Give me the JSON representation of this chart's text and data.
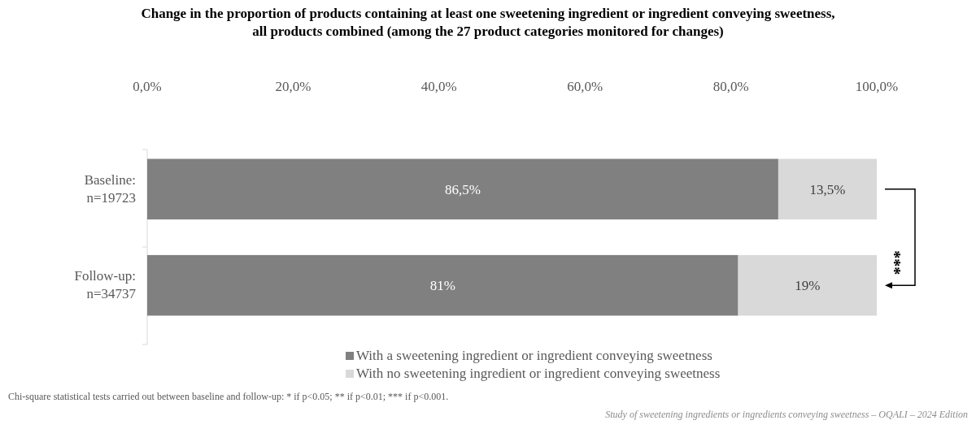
{
  "chart_data": {
    "type": "bar",
    "orientation": "horizontal",
    "stacked": true,
    "title": "Change in the proportion of products containing at least one sweetening ingredient or ingredient conveying sweetness, all products combined (among the 27 product categories monitored for changes)",
    "categories": [
      "Baseline: n=19723",
      "Follow-up: n=34737"
    ],
    "series": [
      {
        "name": "With a sweetening ingredient or ingredient conveying sweetness",
        "color": "#808080",
        "values": [
          86.5,
          81
        ],
        "value_labels": [
          "86,5%",
          "81%"
        ]
      },
      {
        "name": "With no sweetening ingredient or ingredient conveying sweetness",
        "color": "#d9d9d9",
        "values": [
          13.5,
          19
        ],
        "value_labels": [
          "13,5%",
          "19%"
        ]
      }
    ],
    "xlim": [
      0,
      100
    ],
    "xticks": [
      {
        "value": 0,
        "label": "0,0%"
      },
      {
        "value": 20,
        "label": "20,0%"
      },
      {
        "value": 40,
        "label": "40,0%"
      },
      {
        "value": 60,
        "label": "60,0%"
      },
      {
        "value": 80,
        "label": "80,0%"
      },
      {
        "value": 100,
        "label": "100,0%"
      }
    ],
    "legend": "bottom",
    "annotations": [
      "***",
      "Chi-square statistical tests carried out between baseline and follow-up: * if p<0.05; ** if p<0.01; *** if p<0.001.",
      "Study of sweetening ingredients or ingredients conveying sweetness – OQALI – 2024 Edition"
    ]
  }
}
